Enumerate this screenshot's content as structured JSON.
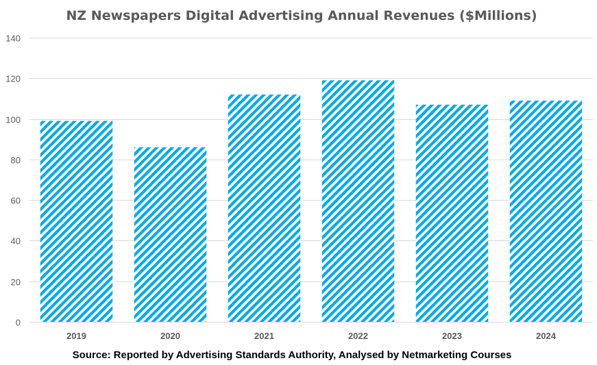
{
  "chart_data": {
    "type": "bar",
    "title": "NZ Newspapers Digital Advertising Annual Revenues ($Millions)",
    "categories": [
      "2019",
      "2020",
      "2021",
      "2022",
      "2023",
      "2024"
    ],
    "values": [
      99,
      86,
      112,
      119,
      107,
      109
    ],
    "xlabel": "",
    "ylabel": "",
    "ylim": [
      0,
      140
    ],
    "yticks": [
      0,
      20,
      40,
      60,
      80,
      100,
      120,
      140
    ],
    "grid": true,
    "bar_fill": "diagonal stripes",
    "bar_color": "#00A9E6",
    "source": "Source: Reported by Advertising Standards Authority, Analysed by Netmarketing Courses"
  }
}
